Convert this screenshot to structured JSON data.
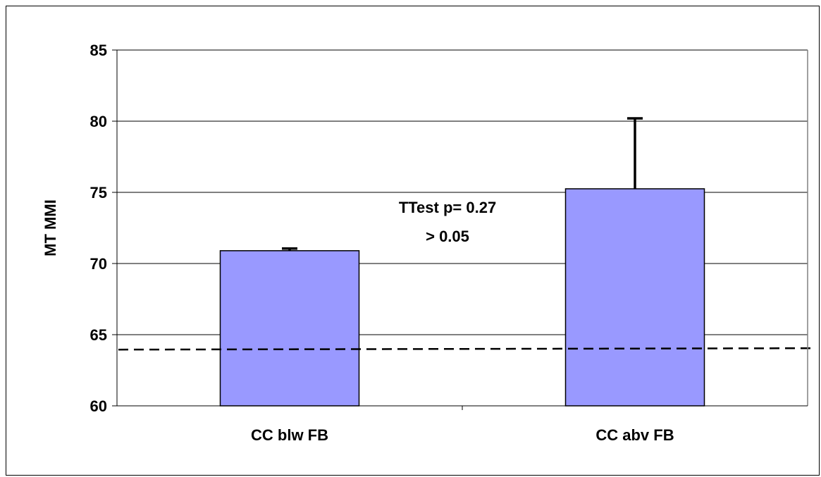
{
  "chart_data": {
    "type": "bar",
    "categories": [
      "CC blw  FB",
      "CC abv FB"
    ],
    "values": [
      70.9,
      75.25
    ],
    "error_bars_upper": [
      71.05,
      80.2
    ],
    "xlabel": "",
    "ylabel": "MT MMI",
    "ylim": [
      60,
      85
    ],
    "yticks": [
      60,
      65,
      70,
      75,
      80,
      85
    ],
    "grid": true,
    "legend": "none",
    "reference_line": {
      "value": 64,
      "style": "dashed"
    },
    "annotation": [
      "TTest p= 0.27",
      "> 0.05"
    ],
    "bar_color": "#9999FF",
    "bar_edge_color": "#000000"
  }
}
